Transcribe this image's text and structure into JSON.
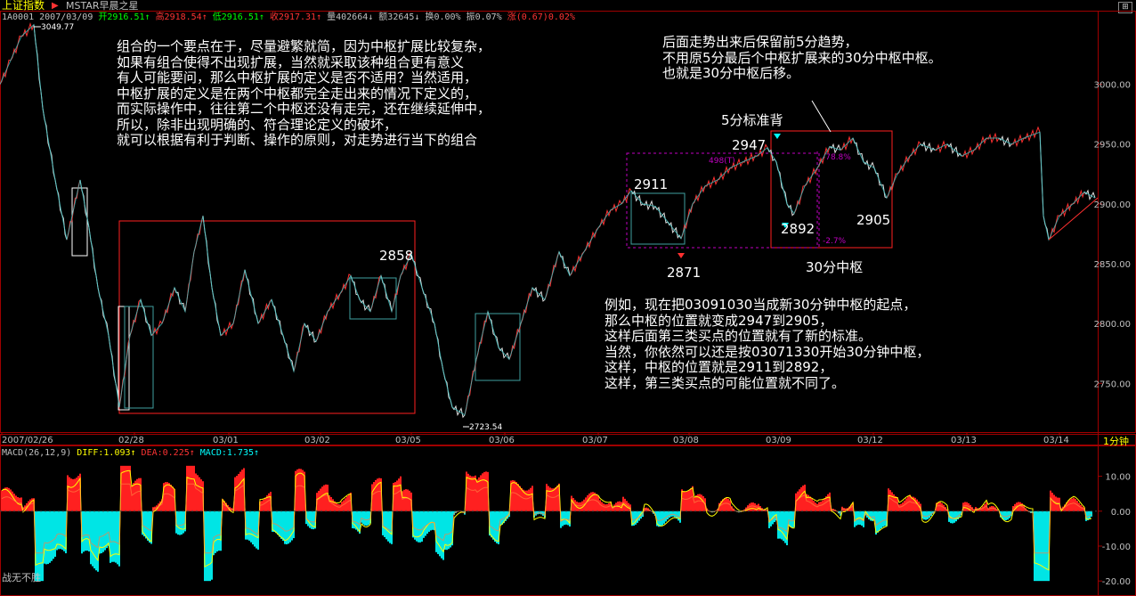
{
  "header": {
    "title": "上证指数",
    "subtitle": "MSTAR早晨之星",
    "ohlc": [
      {
        "text": "1A0001 2007/03/09 ",
        "c": "w"
      },
      {
        "text": "开2916.51↑",
        "c": "g"
      },
      {
        "text": "高2918.54↑",
        "c": "r"
      },
      {
        "text": "低2916.51↑",
        "c": "g"
      },
      {
        "text": "收2917.31↑",
        "c": "r"
      },
      {
        "text": "量402664↓",
        "c": "w"
      },
      {
        "text": "额32645↓",
        "c": "w"
      },
      {
        "text": "换0.00%",
        "c": "w"
      },
      {
        "text": "振0.07%",
        "c": "w"
      },
      {
        "text": "涨(0.67)0.02%",
        "c": "r"
      }
    ]
  },
  "macd_header": [
    {
      "text": "MACD(26,12,9) ",
      "c": "w"
    },
    {
      "text": "DIFF:1.093↑",
      "c": "y"
    },
    {
      "text": "DEA:0.225↑",
      "c": "r"
    },
    {
      "text": "MACD:1.735↑",
      "c": "c"
    }
  ],
  "period_tag": "1分钟",
  "bottom_text": "战无不胜",
  "annotations": {
    "left_block": "组合的一个要点在于，尽量避繁就简，因为中枢扩展比较复杂，\n如果有组合使得不出现扩展，当然就采取该种组合更有意义\n有人可能要问，那么中枢扩展的定义是否不适用？当然适用，\n中枢扩展的定义是在两个中枢都完全走出来的情况下定义的，\n而实际操作中，往往第二个中枢还没有走完，还在继续延伸中，\n所以，除非出现明确的、符合理论定义的破坏，\n就可以根据有利于判断、操作的原则，对走势进行当下的组合",
    "top_right_block": "后面走势出来后保留前5分趋势，\n不用原5分最后个中枢扩展来的30分中枢中枢。\n也就是30分中枢后移。",
    "bottom_right_block": "例如，现在把03091030当成新30分钟中枢的起点，\n那么中枢的位置就变成2947到2905，\n这样后面第三类买点的位置就有了新的标准。\n当然，你依然可以还是按03071330开始30分钟中枢，\n这样，中枢的位置就是2911到2892，\n这样，第三类买点的可能位置就不同了。",
    "standard_divergence": "5分标准背",
    "zs30": "30分中枢",
    "lbl_2947": "2947",
    "lbl_2911": "2911",
    "lbl_2858": "2858",
    "lbl_2871": "2871",
    "lbl_2892": "2892",
    "lbl_2905": "2905",
    "lbl_3049": "3049.77",
    "lbl_2723": "2723.54",
    "lbl_498": "498(T)",
    "lbl_788": "-78.8%",
    "lbl_27": "-2.7%"
  },
  "chart_data": [
    {
      "type": "line",
      "title": "上证指数 1分钟",
      "x_ticks": [
        "2007/02/26",
        "02/28",
        "03/01",
        "03/02",
        "03/05",
        "03/06",
        "03/07",
        "03/08",
        "03/09",
        "03/12",
        "03/13",
        "03/14"
      ],
      "y_ticks": [
        2750,
        2800,
        2850,
        2900,
        2950,
        3000
      ],
      "ylim": [
        2710,
        3060
      ],
      "grid": false,
      "series": [
        {
          "name": "",
          "points": [
            [
              0,
              3000
            ],
            [
              12,
              3020
            ],
            [
              24,
              3040
            ],
            [
              38,
              3049.77
            ],
            [
              48,
              2980
            ],
            [
              62,
              2920
            ],
            [
              75,
              2870
            ],
            [
              90,
              2920
            ],
            [
              100,
              2880
            ],
            [
              110,
              2830
            ],
            [
              122,
              2790
            ],
            [
              134,
              2730
            ],
            [
              146,
              2790
            ],
            [
              158,
              2820
            ],
            [
              170,
              2790
            ],
            [
              182,
              2800
            ],
            [
              196,
              2830
            ],
            [
              208,
              2810
            ],
            [
              218,
              2860
            ],
            [
              228,
              2890
            ],
            [
              238,
              2830
            ],
            [
              248,
              2790
            ],
            [
              262,
              2800
            ],
            [
              275,
              2845
            ],
            [
              290,
              2800
            ],
            [
              305,
              2820
            ],
            [
              318,
              2790
            ],
            [
              330,
              2760
            ],
            [
              342,
              2800
            ],
            [
              355,
              2785
            ],
            [
              368,
              2810
            ],
            [
              382,
              2825
            ],
            [
              394,
              2840
            ],
            [
              404,
              2820
            ],
            [
              416,
              2810
            ],
            [
              428,
              2840
            ],
            [
              440,
              2810
            ],
            [
              450,
              2840
            ],
            [
              462,
              2858
            ],
            [
              474,
              2830
            ],
            [
              488,
              2800
            ],
            [
              498,
              2760
            ],
            [
              508,
              2730
            ],
            [
              522,
              2723.54
            ],
            [
              535,
              2770
            ],
            [
              548,
              2810
            ],
            [
              560,
              2780
            ],
            [
              572,
              2770
            ],
            [
              585,
              2800
            ],
            [
              598,
              2830
            ],
            [
              612,
              2820
            ],
            [
              628,
              2860
            ],
            [
              640,
              2840
            ],
            [
              656,
              2860
            ],
            [
              672,
              2880
            ],
            [
              686,
              2895
            ],
            [
              698,
              2900
            ],
            [
              709,
              2911
            ],
            [
              722,
              2900
            ],
            [
              736,
              2898
            ],
            [
              750,
              2885
            ],
            [
              765,
              2871
            ],
            [
              778,
              2900
            ],
            [
              792,
              2915
            ],
            [
              806,
              2920
            ],
            [
              820,
              2930
            ],
            [
              834,
              2935
            ],
            [
              850,
              2940
            ],
            [
              862,
              2947
            ],
            [
              872,
              2935
            ],
            [
              884,
              2900
            ],
            [
              892,
              2892
            ],
            [
              904,
              2915
            ],
            [
              918,
              2930
            ],
            [
              932,
              2948
            ],
            [
              944,
              2945
            ],
            [
              958,
              2955
            ],
            [
              970,
              2935
            ],
            [
              982,
              2930
            ],
            [
              996,
              2905
            ],
            [
              1008,
              2925
            ],
            [
              1022,
              2940
            ],
            [
              1034,
              2950
            ],
            [
              1050,
              2945
            ],
            [
              1064,
              2950
            ],
            [
              1080,
              2940
            ],
            [
              1094,
              2945
            ],
            [
              1108,
              2955
            ],
            [
              1122,
              2955
            ],
            [
              1136,
              2950
            ],
            [
              1150,
              2955
            ],
            [
              1168,
              2960
            ],
            [
              1172,
              2890
            ],
            [
              1178,
              2870
            ],
            [
              1190,
              2890
            ],
            [
              1205,
              2900
            ],
            [
              1218,
              2910
            ],
            [
              1230,
              2905
            ]
          ]
        }
      ],
      "zhongshu_boxes": [
        {
          "name": "中枢",
          "x0": 134,
          "x1": 466,
          "y_low": 2733,
          "y_high": 2891
        },
        {
          "name": "30分中枢",
          "x0": 866,
          "x1": 1002,
          "y_low": 2879,
          "y_high": 2962
        }
      ]
    },
    {
      "type": "bar",
      "title": "MACD(26,12,9)",
      "y_ticks": [
        10,
        0,
        -10,
        -20
      ],
      "ylim": [
        -22,
        15
      ],
      "series": [
        {
          "name": "DIFF",
          "value": 1.093
        },
        {
          "name": "DEA",
          "value": 0.225
        },
        {
          "name": "MACD",
          "value": 1.735
        }
      ]
    }
  ]
}
